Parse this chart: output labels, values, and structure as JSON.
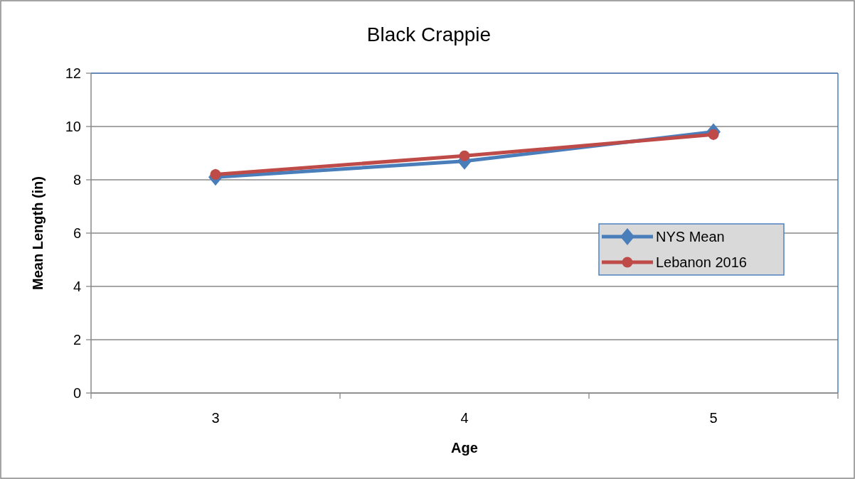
{
  "chart_data": {
    "type": "line",
    "title": "Black Crappie",
    "xlabel": "Age",
    "ylabel": "Mean Length (in)",
    "categories": [
      "3",
      "4",
      "5"
    ],
    "series": [
      {
        "name": "NYS Mean",
        "color": "#4a7ebb",
        "values": [
          8.1,
          8.7,
          9.8
        ],
        "marker": "diamond"
      },
      {
        "name": "Lebanon 2016",
        "color": "#be4b48",
        "values": [
          8.2,
          8.9,
          9.7
        ],
        "marker": "circle"
      }
    ],
    "ylim": [
      0,
      12
    ],
    "yticks": [
      0,
      2,
      4,
      6,
      8,
      10,
      12
    ],
    "grid": "y",
    "legend": "right"
  }
}
